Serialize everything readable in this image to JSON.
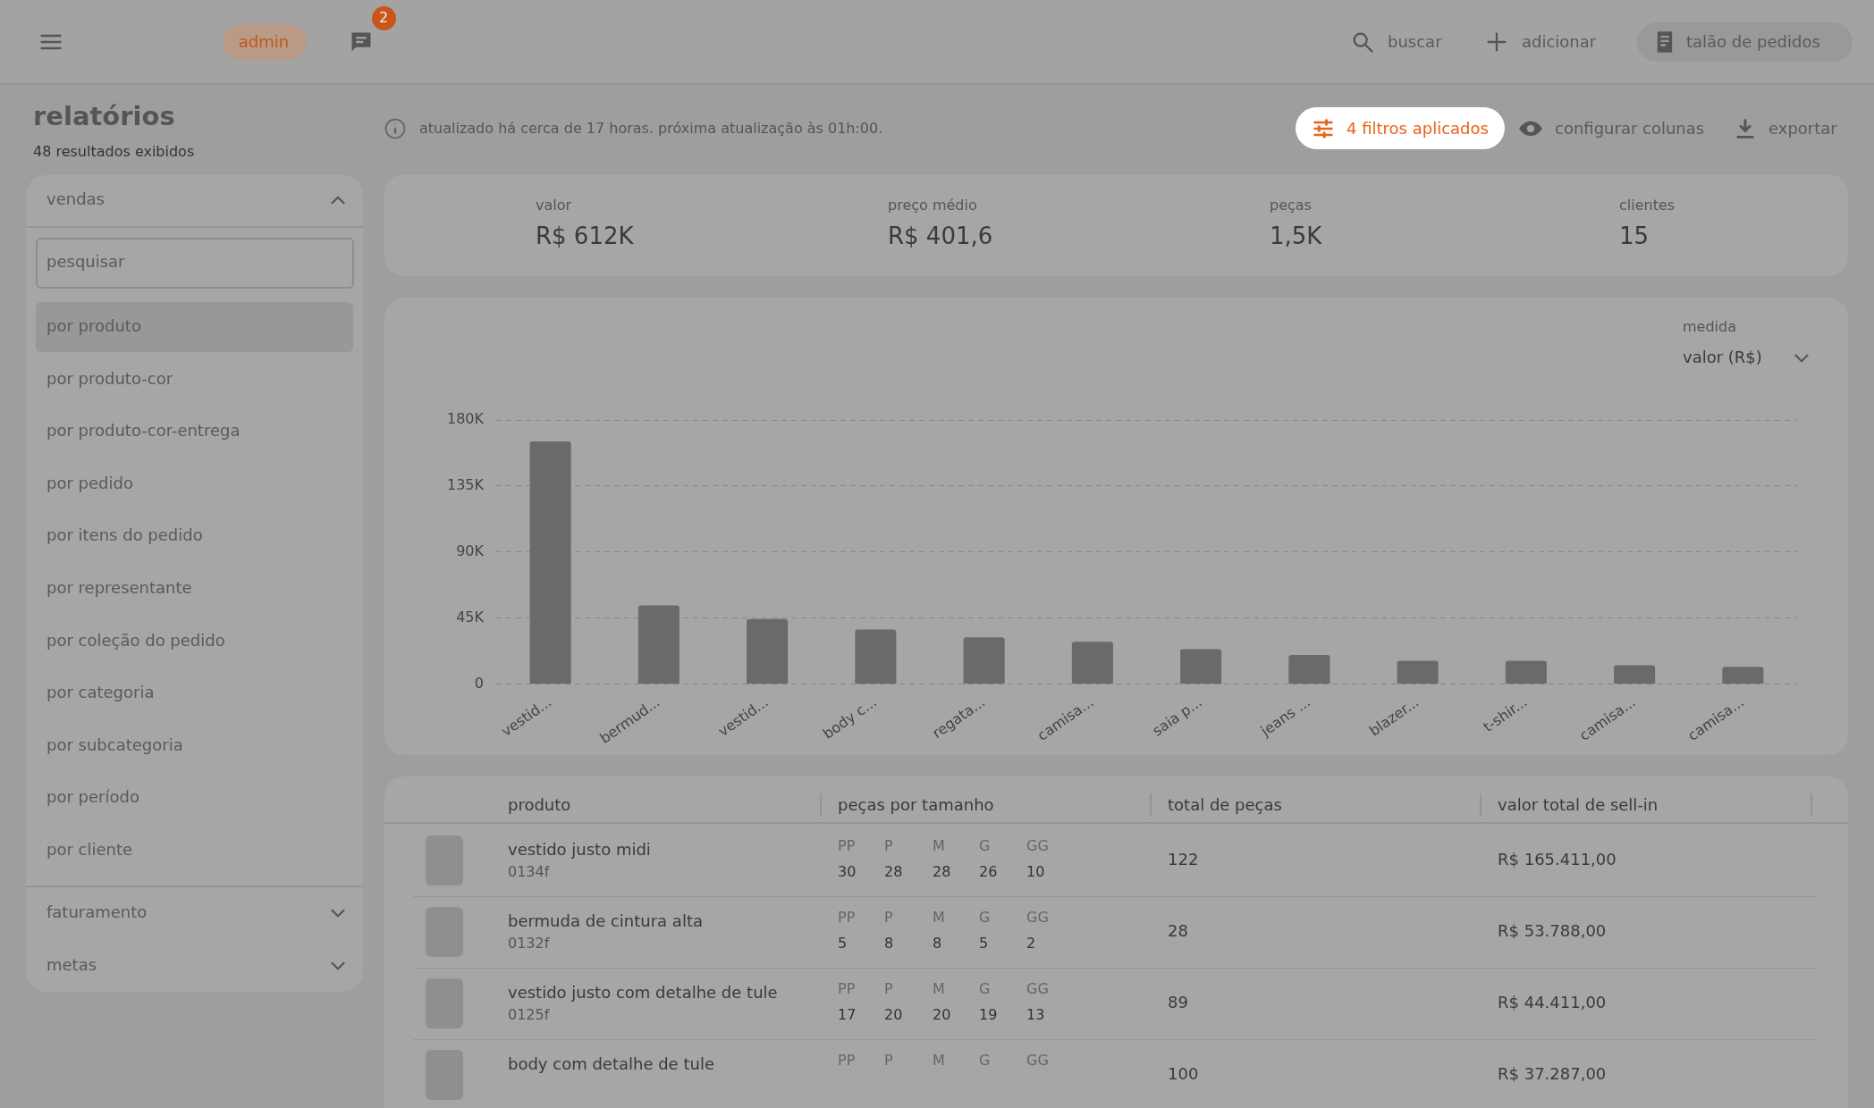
{
  "chart_data": {
    "type": "bar",
    "categories": [
      "vestid...",
      "bermud...",
      "vestid...",
      "body c...",
      "regata...",
      "camisa...",
      "saia p...",
      "jeans ...",
      "blazer...",
      "t-shir...",
      "camisa...",
      "camisa..."
    ],
    "values": [
      165411,
      53788,
      44411,
      37287,
      32000,
      29000,
      24000,
      20000,
      16000,
      16000,
      13000,
      12000
    ],
    "color": "#6a6a6a",
    "ylim": [
      0,
      180000
    ],
    "yticks": [
      {
        "value": 0,
        "label": "0"
      },
      {
        "value": 45000,
        "label": "45K"
      },
      {
        "value": 90000,
        "label": "90K"
      },
      {
        "value": 135000,
        "label": "135K"
      },
      {
        "value": 180000,
        "label": "180K"
      }
    ],
    "grid": "y",
    "annotations": [
      "2",
      "admin",
      "buscar",
      "adicionar",
      "talão de pedidos",
      "relatórios",
      "48 resultados exibidos",
      "atualizado há cerca de 17 horas. próxima atualização às 01h:00.",
      "4 filtros aplicados",
      "configurar colunas",
      "exportar",
      "vendas",
      "pesquisar",
      "por produto",
      "por produto-cor",
      "por produto-cor-entrega",
      "por pedido",
      "por itens do pedido",
      "por representante",
      "por coleção do pedido",
      "por categoria",
      "por subcategoria",
      "por período",
      "por cliente",
      "faturamento",
      "metas",
      "valor",
      "R$ 612K",
      "preço médio",
      "R$ 401,6",
      "peças",
      "1,5K",
      "clientes",
      "15",
      "medida",
      "valor (R$)",
      "produto",
      "peças por tamanho",
      "total de peças",
      "valor total de sell-in",
      "vestido justo midi",
      "0134f",
      "PP",
      "P",
      "M",
      "G",
      "GG",
      "30",
      "28",
      "28",
      "26",
      "10",
      "122",
      "R$ 165.411,00",
      "bermuda de cintura alta",
      "0132f",
      "PP",
      "P",
      "M",
      "G",
      "GG",
      "5",
      "8",
      "8",
      "5",
      "2",
      "28",
      "R$ 53.788,00",
      "vestido justo com detalhe de tule",
      "0125f",
      "PP",
      "P",
      "M",
      "G",
      "GG",
      "17",
      "20",
      "20",
      "19",
      "13",
      "89",
      "R$ 44.411,00",
      "body com detalhe de tule",
      "PP",
      "P",
      "M",
      "G",
      "GG",
      "100",
      "R$ 37.287,00"
    ]
  }
}
